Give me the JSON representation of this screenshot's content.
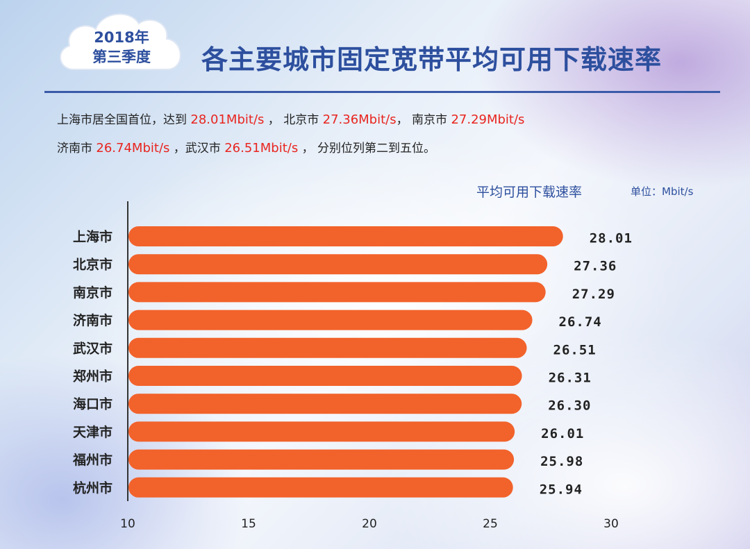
{
  "badge": {
    "year": "2018年",
    "quarter": "第三季度"
  },
  "title": "各主要城市固定宽带平均可用下载速率",
  "summary": {
    "line1": [
      {
        "text": "上海市居全国首位，达到 ",
        "hl": false
      },
      {
        "text": "28.01Mbit/s",
        "hl": true
      },
      {
        "text": " ，  北京市 ",
        "hl": false
      },
      {
        "text": "27.36Mbit/s",
        "hl": true
      },
      {
        "text": "，  南京市 ",
        "hl": false
      },
      {
        "text": "27.29Mbit/s",
        "hl": true
      }
    ],
    "line2": [
      {
        "text": "济南市 ",
        "hl": false
      },
      {
        "text": "26.74Mbit/s",
        "hl": true
      },
      {
        "text": " ，武汉市 ",
        "hl": false
      },
      {
        "text": "26.51Mbit/s",
        "hl": true
      },
      {
        "text": " ，   分别位列第二到五位。",
        "hl": false
      }
    ]
  },
  "colors": {
    "accent": "#2d4f9e",
    "bar": "#f2622b",
    "highlight": "#e8251f"
  },
  "chart_data": {
    "type": "bar",
    "orientation": "horizontal",
    "title": "平均可用下载速率",
    "unit": "单位：Mbit/s",
    "categories": [
      "上海市",
      "北京市",
      "南京市",
      "济南市",
      "武汉市",
      "郑州市",
      "海口市",
      "天津市",
      "福州市",
      "杭州市"
    ],
    "values": [
      28.01,
      27.36,
      27.29,
      26.74,
      26.51,
      26.31,
      26.3,
      26.01,
      25.98,
      25.94
    ],
    "value_labels": [
      "28.01",
      "27.36",
      "27.29",
      "26.74",
      "26.51",
      "26.31",
      "26.30",
      "26.01",
      "25.98",
      "25.94"
    ],
    "xlim": [
      10,
      30
    ],
    "xticks": [
      10,
      15,
      20,
      25,
      30
    ],
    "grid": false
  }
}
